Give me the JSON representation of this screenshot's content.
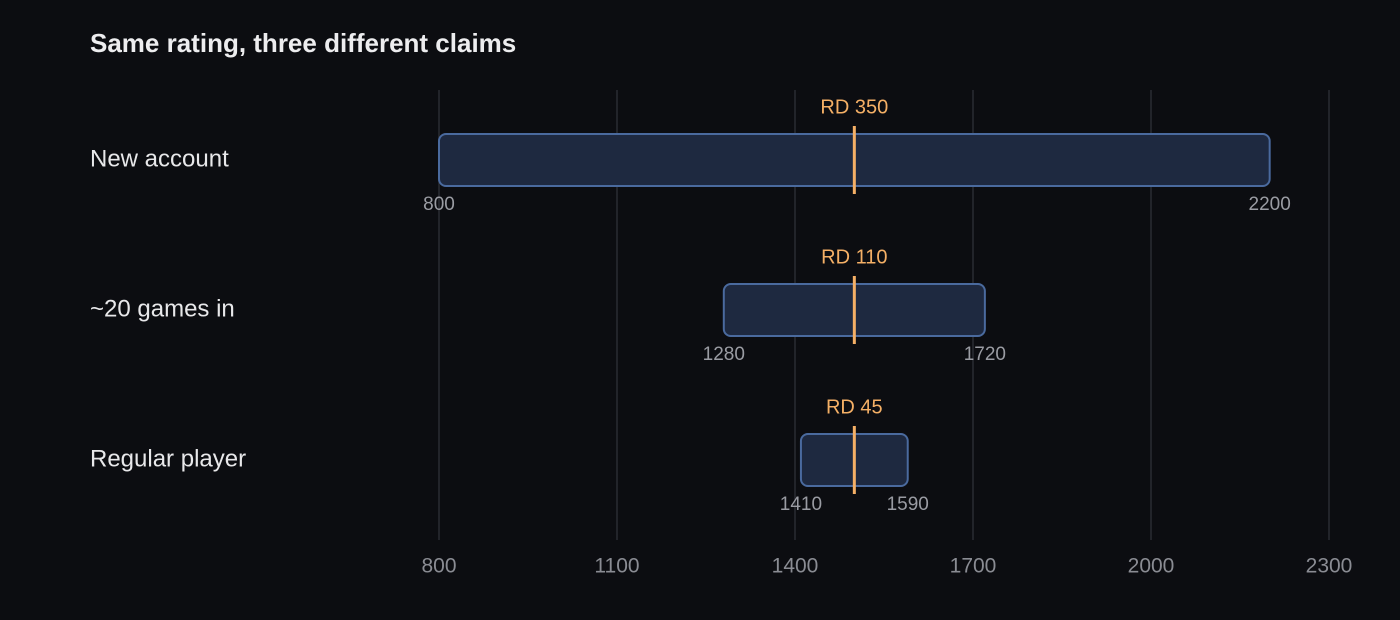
{
  "chart_data": {
    "type": "range",
    "title": "Same rating, three different claims",
    "categories": [
      "New account",
      "~20 games in",
      "Regular player"
    ],
    "low": [
      800,
      1280,
      1410
    ],
    "high": [
      2200,
      1720,
      1590
    ],
    "center": [
      1500,
      1500,
      1500
    ],
    "rd": [
      350,
      110,
      45
    ],
    "rd_labels": [
      "RD 350",
      "RD 110",
      "RD 45"
    ],
    "xlim": [
      800,
      2300
    ],
    "xticks": [
      800,
      1100,
      1400,
      1700,
      2000,
      2300
    ],
    "grid": true,
    "color": "#4a6a9e",
    "fill": "#1e2940",
    "marker_color": "#f5b066"
  }
}
